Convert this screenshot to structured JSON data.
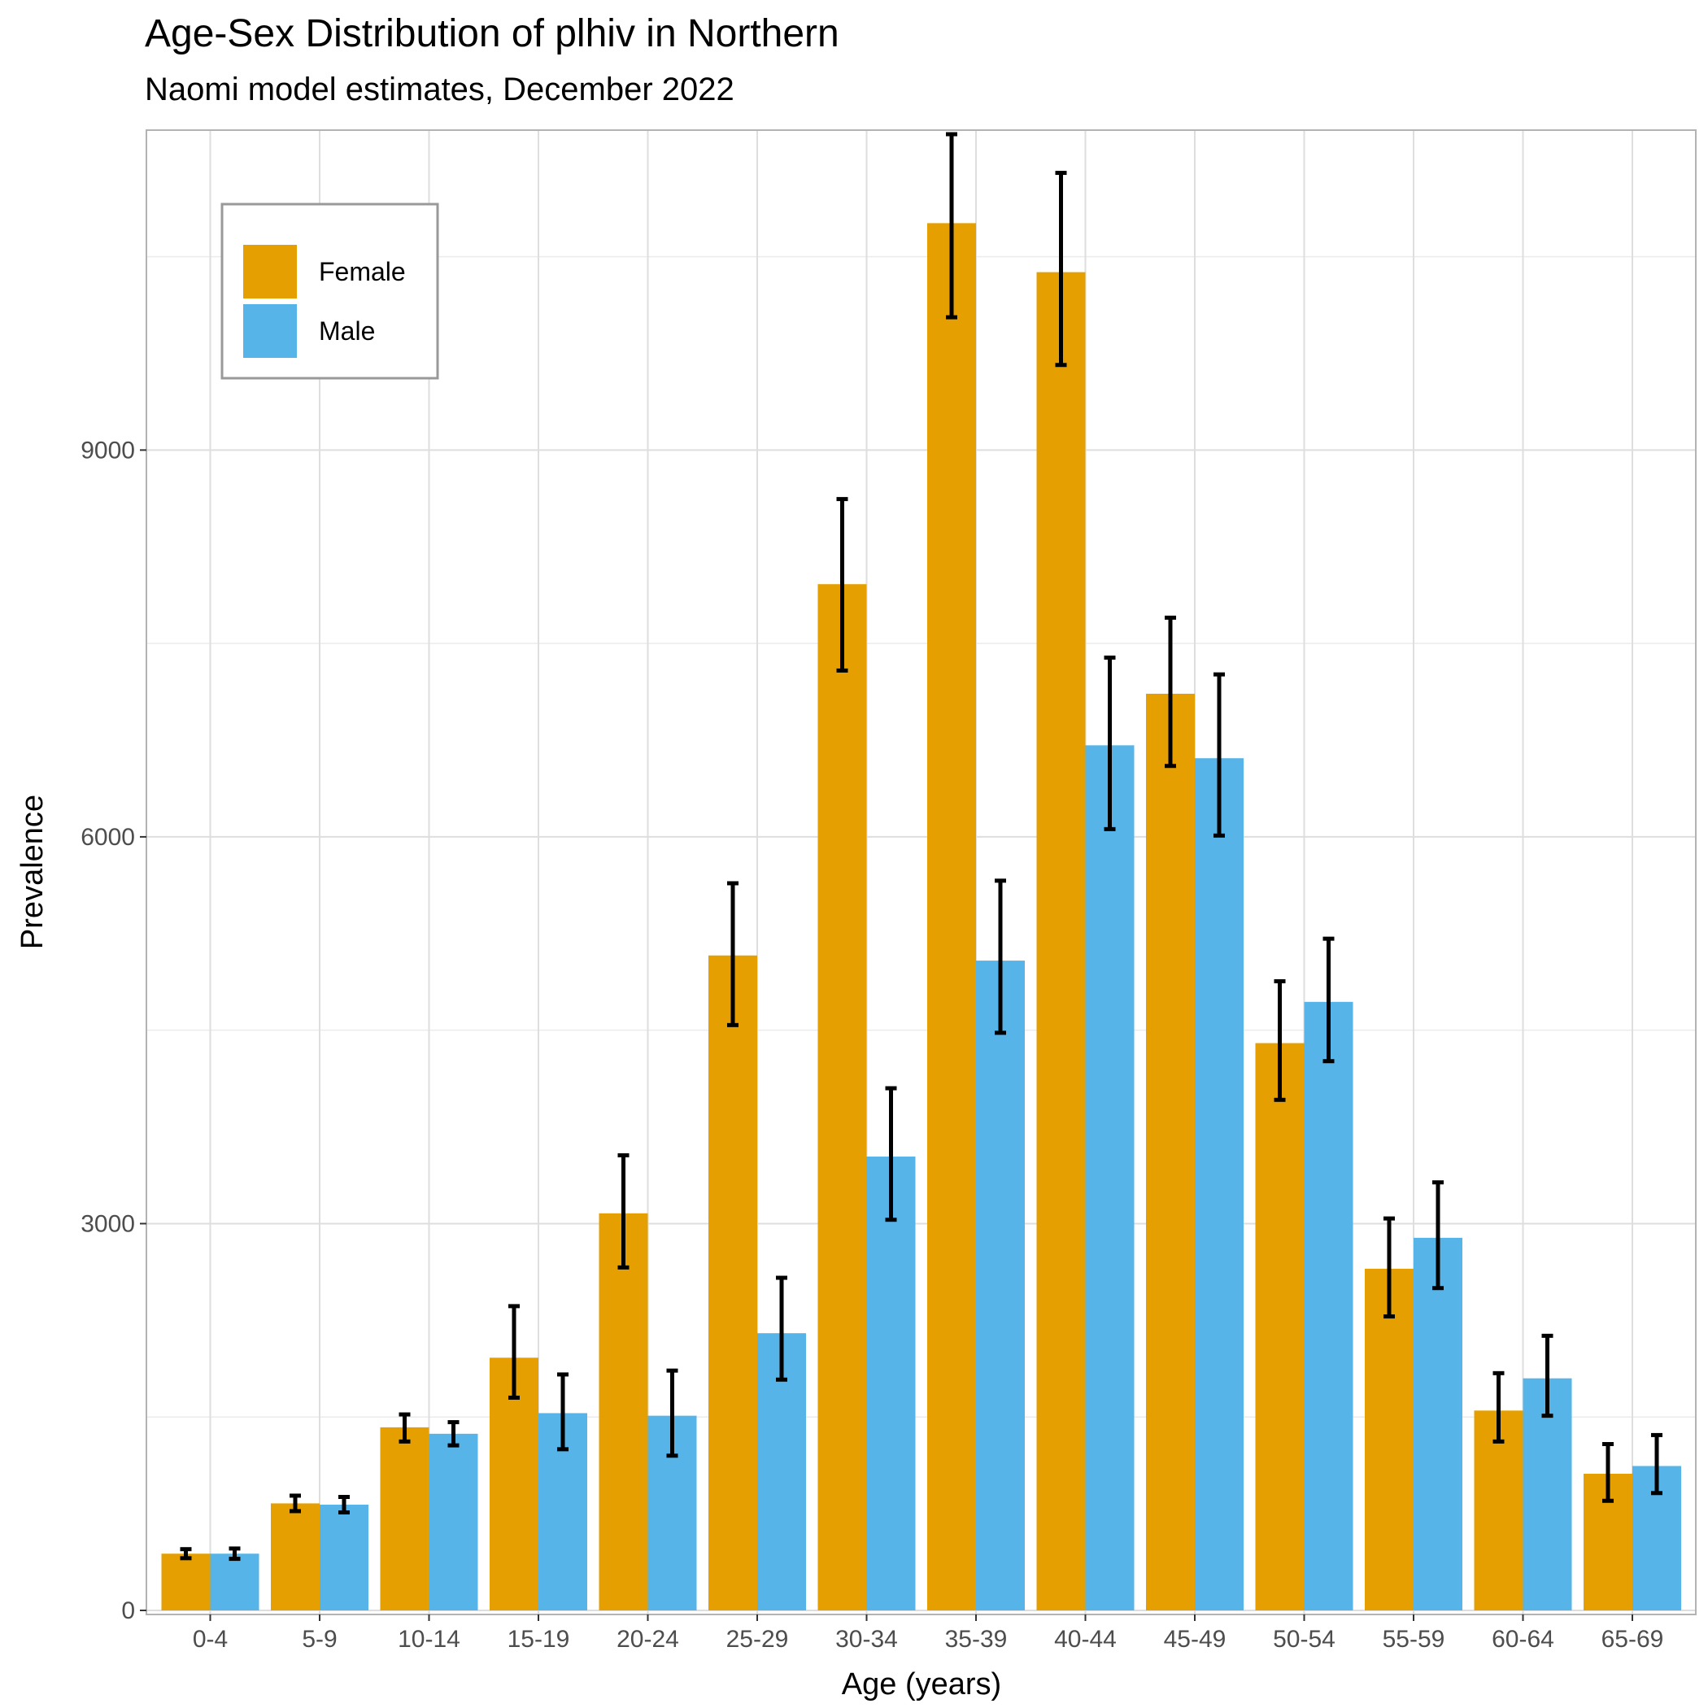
{
  "chart_data": {
    "type": "bar",
    "title": "Age-Sex Distribution of plhiv in Northern",
    "subtitle": "Naomi model estimates, December 2022",
    "xlabel": "Age (years)",
    "ylabel": "Prevalence",
    "ylim": [
      0,
      11450
    ],
    "yticks": [
      0,
      3000,
      6000,
      9000
    ],
    "grid": true,
    "legend_position": "top-left",
    "categories": [
      "0-4",
      "5-9",
      "10-14",
      "15-19",
      "20-24",
      "25-29",
      "30-34",
      "35-39",
      "40-44",
      "45-49",
      "50-54",
      "55-59",
      "60-64",
      "65-69"
    ],
    "series": [
      {
        "name": "Female",
        "color": "#E69F00",
        "values": [
          440,
          830,
          1420,
          1960,
          3080,
          5080,
          7960,
          10760,
          10380,
          7110,
          4400,
          2650,
          1550,
          1060
        ],
        "lower": [
          405,
          770,
          1310,
          1650,
          2660,
          4540,
          7290,
          10030,
          9660,
          6550,
          3960,
          2280,
          1310,
          850
        ],
        "upper": [
          475,
          890,
          1520,
          2360,
          3530,
          5640,
          8620,
          11450,
          11150,
          7700,
          4880,
          3040,
          1840,
          1290
        ]
      },
      {
        "name": "Male",
        "color": "#56B4E9",
        "values": [
          440,
          820,
          1370,
          1530,
          1510,
          2150,
          3520,
          5040,
          6710,
          6610,
          4720,
          2890,
          1800,
          1120
        ],
        "lower": [
          400,
          760,
          1280,
          1250,
          1200,
          1790,
          3030,
          4480,
          6060,
          6010,
          4260,
          2500,
          1510,
          910
        ],
        "upper": [
          480,
          880,
          1460,
          1830,
          1860,
          2580,
          4050,
          5660,
          7390,
          7260,
          5210,
          3320,
          2130,
          1360
        ]
      }
    ]
  }
}
